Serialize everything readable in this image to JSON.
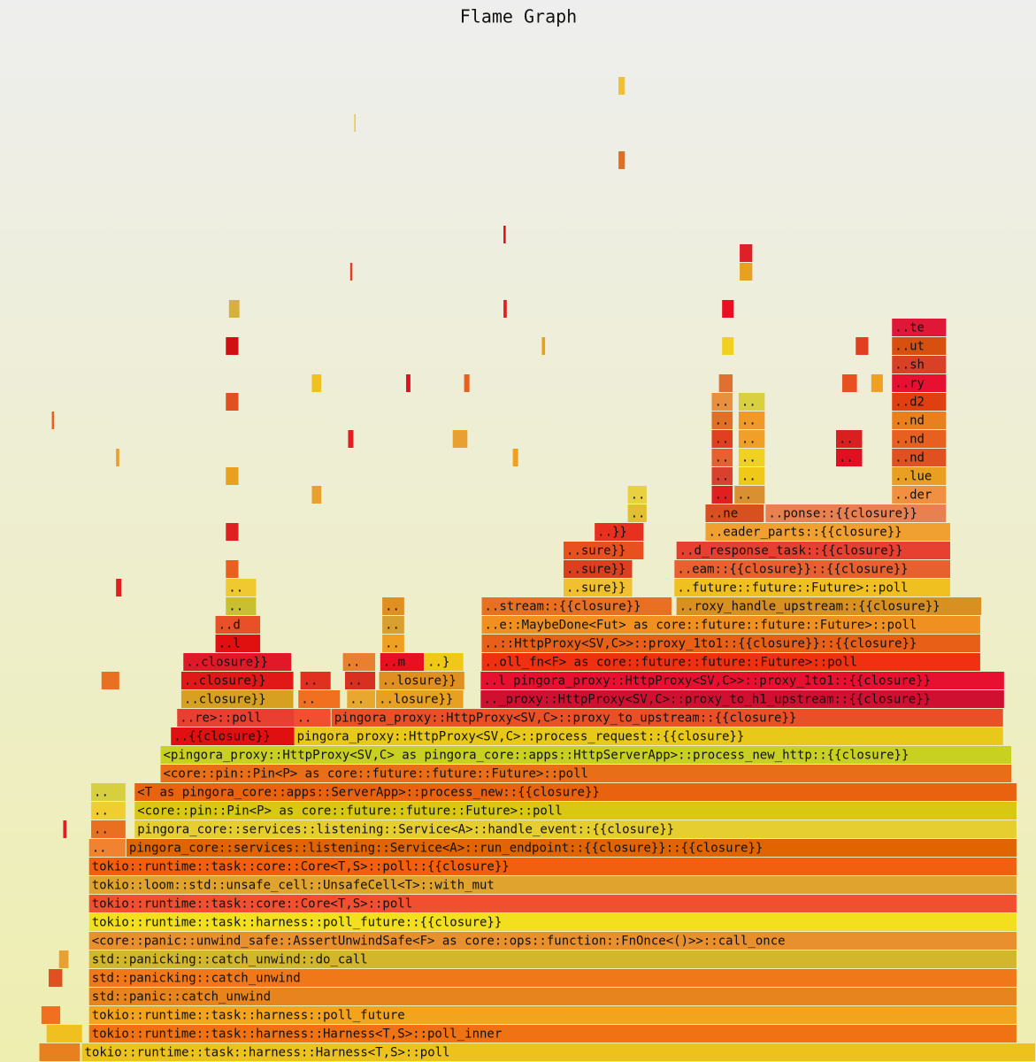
{
  "chart_data": {
    "type": "flame",
    "title": "Flame Graph",
    "frames": [
      {
        "name": "tokio::runtime::task::harness::Harness<T,S>::poll",
        "level": 0,
        "start": 7.9,
        "width": 92.1,
        "color": "#eec21c"
      },
      {
        "name": "tokio::runtime::task::harness::Harness<T,S>::poll_inner",
        "level": 1,
        "start": 8.6,
        "width": 89.6,
        "color": "#f07212"
      },
      {
        "name": "tokio::runtime::task::harness::poll_future",
        "level": 2,
        "start": 8.6,
        "width": 89.6,
        "color": "#f2a41e"
      },
      {
        "name": "std::panic::catch_unwind",
        "level": 3,
        "start": 8.6,
        "width": 89.6,
        "color": "#e8841e"
      },
      {
        "name": "std::panicking::catch_unwind",
        "level": 4,
        "start": 8.6,
        "width": 89.6,
        "color": "#f07818"
      },
      {
        "name": "std::panicking::catch_unwind::do_call",
        "level": 5,
        "start": 8.6,
        "width": 89.6,
        "color": "#d4b62c"
      },
      {
        "name": "<core::panic::unwind_safe::AssertUnwindSafe<F> as core::ops::function::FnOnce<()>>::call_once",
        "level": 6,
        "start": 8.6,
        "width": 89.6,
        "color": "#e8902e"
      },
      {
        "name": "tokio::runtime::task::harness::poll_future::{{closure}}",
        "level": 7,
        "start": 8.6,
        "width": 89.6,
        "color": "#f2e01e"
      },
      {
        "name": "tokio::runtime::task::core::Core<T,S>::poll",
        "level": 8,
        "start": 8.6,
        "width": 89.6,
        "color": "#f24e30"
      },
      {
        "name": "tokio::loom::std::unsafe_cell::UnsafeCell<T>::with_mut",
        "level": 9,
        "start": 8.6,
        "width": 89.6,
        "color": "#e0a42e"
      },
      {
        "name": "tokio::runtime::task::core::Core<T,S>::poll::{{closure}}",
        "level": 10,
        "start": 8.6,
        "width": 89.6,
        "color": "#f0600e"
      },
      {
        "name": "..",
        "level": 11,
        "start": 8.6,
        "width": 3.6,
        "color": "#f08230"
      },
      {
        "name": "pingora_core::services::listening::Service<A>::run_endpoint::{{closure}}::{{closure}}",
        "level": 11,
        "start": 12.2,
        "width": 86.0,
        "color": "#e06400"
      },
      {
        "name": "..",
        "level": 12,
        "start": 8.8,
        "width": 3.4,
        "color": "#e87020"
      },
      {
        "name": "pingora_core::services::listening::Service<A>::handle_event::{{closure}}",
        "level": 12,
        "start": 13.0,
        "width": 85.2,
        "color": "#e6ce30"
      },
      {
        "name": "..",
        "level": 13,
        "start": 8.8,
        "width": 3.4,
        "color": "#f0ce30"
      },
      {
        "name": "<core::pin::Pin<P> as core::future::future::Future>::poll",
        "level": 13,
        "start": 13.0,
        "width": 85.2,
        "color": "#d8c812"
      },
      {
        "name": "..",
        "level": 14,
        "start": 8.8,
        "width": 3.4,
        "color": "#d6d040"
      },
      {
        "name": "<T as pingora_core::apps::ServerApp>::process_new::{{closure}}",
        "level": 14,
        "start": 13.0,
        "width": 85.2,
        "color": "#e86210"
      },
      {
        "name": "<core::pin::Pin<P> as core::future::future::Future>::poll",
        "level": 15,
        "start": 15.5,
        "width": 82.2,
        "color": "#e86e18"
      },
      {
        "name": "<pingora_proxy::HttpProxy<SV,C> as pingora_core::apps::HttpServerApp>::process_new_http::{{closure}}",
        "level": 16,
        "start": 15.5,
        "width": 82.2,
        "color": "#c8d020"
      },
      {
        "name": "..{{closure}}",
        "level": 17,
        "start": 16.5,
        "width": 12.0,
        "color": "#e01010"
      },
      {
        "name": "pingora_proxy::HttpProxy<SV,C>::process_request::{{closure}}",
        "level": 17,
        "start": 28.4,
        "width": 68.5,
        "color": "#e8c818"
      },
      {
        "name": "..re>::poll",
        "level": 18,
        "start": 17.1,
        "width": 11.4,
        "color": "#e84030"
      },
      {
        "name": "..",
        "level": 18,
        "start": 28.4,
        "width": 3.6,
        "color": "#f05030"
      },
      {
        "name": "pingora_proxy::HttpProxy<SV,C>::proxy_to_upstream::{{closure}}",
        "level": 18,
        "start": 32.0,
        "width": 64.9,
        "color": "#e85028"
      },
      {
        "name": "..closure}}",
        "level": 19,
        "start": 17.5,
        "width": 10.9,
        "color": "#d8a020"
      },
      {
        "name": "..",
        "level": 19,
        "start": 28.8,
        "width": 4.1,
        "color": "#f07020"
      },
      {
        "name": "..",
        "level": 19,
        "start": 33.5,
        "width": 2.8,
        "color": "#e8a830"
      },
      {
        "name": "..losure}}",
        "level": 19,
        "start": 36.3,
        "width": 8.5,
        "color": "#e8a020"
      },
      {
        "name": ".._proxy::HttpProxy<SV,C>::proxy_to_h1_upstream::{{closure}}",
        "level": 19,
        "start": 46.4,
        "width": 50.6,
        "color": "#d01030"
      },
      {
        "name": "..closure}}",
        "level": 20,
        "start": 17.5,
        "width": 10.9,
        "color": "#e01818"
      },
      {
        "name": "..",
        "level": 20,
        "start": 29.0,
        "width": 3.0,
        "color": "#e03020"
      },
      {
        "name": "..",
        "level": 20,
        "start": 33.3,
        "width": 3.0,
        "color": "#d83020"
      },
      {
        "name": "..losure}}",
        "level": 20,
        "start": 36.6,
        "width": 8.3,
        "color": "#e09020"
      },
      {
        "name": "..l pingora_proxy::HttpProxy<SV,C>>::proxy_1to1::{{closure}}",
        "level": 20,
        "start": 46.4,
        "width": 50.6,
        "color": "#e81030"
      },
      {
        "name": "..closure}}",
        "level": 21,
        "start": 17.7,
        "width": 10.5,
        "color": "#e01828"
      },
      {
        "name": "..",
        "level": 21,
        "start": 33.1,
        "width": 3.2,
        "color": "#e88030"
      },
      {
        "name": "..m",
        "level": 21,
        "start": 36.7,
        "width": 4.3,
        "color": "#e81020"
      },
      {
        "name": "..}",
        "level": 21,
        "start": 41.0,
        "width": 3.8,
        "color": "#f0c818"
      },
      {
        "name": "..oll_fn<F> as core::future::future::Future>::poll",
        "level": 21,
        "start": 46.5,
        "width": 48.2,
        "color": "#f03010"
      },
      {
        "name": "..l",
        "level": 22,
        "start": 20.8,
        "width": 4.4,
        "color": "#e01010"
      },
      {
        "name": "..",
        "level": 22,
        "start": 36.9,
        "width": 2.2,
        "color": "#f0a020"
      },
      {
        "name": "..::HttpProxy<SV,C>>::proxy_1to1::{{closure}}::{{closure}}",
        "level": 22,
        "start": 46.5,
        "width": 48.2,
        "color": "#e86018"
      },
      {
        "name": "..d",
        "level": 23,
        "start": 20.8,
        "width": 4.4,
        "color": "#e85028"
      },
      {
        "name": "..",
        "level": 23,
        "start": 36.9,
        "width": 2.2,
        "color": "#d8a030"
      },
      {
        "name": "..e::MaybeDone<Fut> as core::future::future::Future>::poll",
        "level": 23,
        "start": 46.5,
        "width": 48.2,
        "color": "#f09020"
      },
      {
        "name": "..",
        "level": 24,
        "start": 21.8,
        "width": 3.0,
        "color": "#c8c030"
      },
      {
        "name": "..",
        "level": 24,
        "start": 36.9,
        "width": 2.2,
        "color": "#e09020"
      },
      {
        "name": "..stream::{{closure}}",
        "level": 24,
        "start": 46.5,
        "width": 18.4,
        "color": "#e87020"
      },
      {
        "name": "..roxy_handle_upstream::{{closure}}",
        "level": 24,
        "start": 65.3,
        "width": 29.5,
        "color": "#d89020"
      },
      {
        "name": "..",
        "level": 25,
        "start": 21.8,
        "width": 3.0,
        "color": "#f0c830"
      },
      {
        "name": "..sure}}",
        "level": 25,
        "start": 54.4,
        "width": 6.7,
        "color": "#f0c030"
      },
      {
        "name": "..future::future::Future>::poll",
        "level": 25,
        "start": 65.1,
        "width": 26.7,
        "color": "#f0c020"
      },
      {
        "name": "..sure}}",
        "level": 26,
        "start": 54.4,
        "width": 6.7,
        "color": "#d84020"
      },
      {
        "name": "..eam::{{closure}}::{{closure}}",
        "level": 26,
        "start": 65.1,
        "width": 26.7,
        "color": "#e86030"
      },
      {
        "name": "..sure}}",
        "level": 27,
        "start": 54.4,
        "width": 7.8,
        "color": "#e85020"
      },
      {
        "name": "..d_response_task::{{closure}}",
        "level": 27,
        "start": 65.3,
        "width": 26.5,
        "color": "#e84030"
      },
      {
        "name": "..}}",
        "level": 28,
        "start": 57.4,
        "width": 4.8,
        "color": "#e83020"
      },
      {
        "name": "..eader_parts::{{closure}}",
        "level": 28,
        "start": 68.1,
        "width": 23.7,
        "color": "#f0a030"
      },
      {
        "name": "..",
        "level": 29,
        "start": 60.6,
        "width": 1.9,
        "color": "#e0c030"
      },
      {
        "name": "..ne",
        "level": 29,
        "start": 68.1,
        "width": 5.7,
        "color": "#d85020"
      },
      {
        "name": "..ponse::{{closure}}",
        "level": 29,
        "start": 73.9,
        "width": 17.5,
        "color": "#e88050"
      },
      {
        "name": "..",
        "level": 30,
        "start": 60.6,
        "width": 1.9,
        "color": "#e8d040"
      },
      {
        "name": "..",
        "level": 30,
        "start": 68.7,
        "width": 2.1,
        "color": "#e02020"
      },
      {
        "name": "..",
        "level": 30,
        "start": 70.9,
        "width": 3.0,
        "color": "#d89030"
      },
      {
        "name": "..der",
        "level": 30,
        "start": 86.1,
        "width": 5.3,
        "color": "#f09040"
      },
      {
        "name": "..",
        "level": 31,
        "start": 68.7,
        "width": 2.1,
        "color": "#d84030"
      },
      {
        "name": "..",
        "level": 31,
        "start": 71.3,
        "width": 2.6,
        "color": "#f0c818"
      },
      {
        "name": "..lue",
        "level": 31,
        "start": 86.1,
        "width": 5.3,
        "color": "#e8a020"
      },
      {
        "name": "..",
        "level": 32,
        "start": 68.7,
        "width": 2.1,
        "color": "#e86030"
      },
      {
        "name": "..",
        "level": 32,
        "start": 71.3,
        "width": 2.6,
        "color": "#f0d020"
      },
      {
        "name": "..",
        "level": 32,
        "start": 80.7,
        "width": 2.6,
        "color": "#e01020"
      },
      {
        "name": "..nd",
        "level": 32,
        "start": 86.1,
        "width": 5.3,
        "color": "#e05020"
      },
      {
        "name": "..",
        "level": 33,
        "start": 68.7,
        "width": 2.1,
        "color": "#e04020"
      },
      {
        "name": "..",
        "level": 33,
        "start": 71.3,
        "width": 2.6,
        "color": "#f0a028"
      },
      {
        "name": "..",
        "level": 33,
        "start": 80.7,
        "width": 2.6,
        "color": "#d82020"
      },
      {
        "name": "..nd",
        "level": 33,
        "start": 86.1,
        "width": 5.3,
        "color": "#e86020"
      },
      {
        "name": "..",
        "level": 34,
        "start": 68.7,
        "width": 2.1,
        "color": "#e07028"
      },
      {
        "name": "..",
        "level": 34,
        "start": 71.3,
        "width": 2.6,
        "color": "#f09828"
      },
      {
        "name": "..nd",
        "level": 34,
        "start": 86.1,
        "width": 5.3,
        "color": "#e88020"
      },
      {
        "name": "..",
        "level": 35,
        "start": 68.7,
        "width": 2.1,
        "color": "#e89040"
      },
      {
        "name": "..",
        "level": 35,
        "start": 71.3,
        "width": 2.6,
        "color": "#d8d040"
      },
      {
        "name": "..d2",
        "level": 35,
        "start": 86.1,
        "width": 5.3,
        "color": "#e04010"
      },
      {
        "name": "..ry",
        "level": 36,
        "start": 86.1,
        "width": 5.3,
        "color": "#e81030"
      },
      {
        "name": "..sh",
        "level": 37,
        "start": 86.1,
        "width": 5.3,
        "color": "#d84028"
      },
      {
        "name": "..ut",
        "level": 38,
        "start": 86.1,
        "width": 5.3,
        "color": "#d85010"
      },
      {
        "name": "..te",
        "level": 39,
        "start": 86.1,
        "width": 5.3,
        "color": "#e01838"
      },
      {
        "name": null,
        "level": 26,
        "start": 21.8,
        "width": 1.3,
        "color": "#e86020"
      },
      {
        "name": null,
        "level": 28,
        "start": 21.8,
        "width": 1.3,
        "color": "#e02020"
      },
      {
        "name": null,
        "level": 31,
        "start": 21.8,
        "width": 1.3,
        "color": "#e8a020"
      },
      {
        "name": null,
        "level": 35,
        "start": 21.8,
        "width": 1.3,
        "color": "#e05020"
      },
      {
        "name": null,
        "level": 38,
        "start": 21.8,
        "width": 1.3,
        "color": "#d01010"
      },
      {
        "name": null,
        "level": 40,
        "start": 22.1,
        "width": 1.1,
        "color": "#d8b040"
      },
      {
        "name": null,
        "level": 30,
        "start": 30.1,
        "width": 1.0,
        "color": "#e8a030"
      },
      {
        "name": null,
        "level": 36,
        "start": 30.1,
        "width": 1.0,
        "color": "#f0c020"
      },
      {
        "name": null,
        "level": 33,
        "start": 33.6,
        "width": 0.6,
        "color": "#e02020"
      },
      {
        "name": null,
        "level": 42,
        "start": 33.8,
        "width": 0.3,
        "color": "#e04020"
      },
      {
        "name": null,
        "level": 50,
        "start": 34.2,
        "width": 0.2,
        "color": "#f0c020"
      },
      {
        "name": null,
        "level": 36,
        "start": 39.2,
        "width": 0.5,
        "color": "#e01020"
      },
      {
        "name": null,
        "level": 33,
        "start": 43.7,
        "width": 1.5,
        "color": "#e8a030"
      },
      {
        "name": null,
        "level": 36,
        "start": 44.8,
        "width": 0.6,
        "color": "#e86020"
      },
      {
        "name": null,
        "level": 40,
        "start": 48.6,
        "width": 0.4,
        "color": "#e02020"
      },
      {
        "name": null,
        "level": 44,
        "start": 48.6,
        "width": 0.3,
        "color": "#d81010"
      },
      {
        "name": null,
        "level": 32,
        "start": 49.5,
        "width": 0.6,
        "color": "#f0a020"
      },
      {
        "name": null,
        "level": 38,
        "start": 52.3,
        "width": 0.4,
        "color": "#e8a020"
      },
      {
        "name": null,
        "level": 48,
        "start": 59.7,
        "width": 0.7,
        "color": "#e07020"
      },
      {
        "name": null,
        "level": 52,
        "start": 59.7,
        "width": 0.7,
        "color": "#f0c030"
      },
      {
        "name": null,
        "level": 36,
        "start": 69.4,
        "width": 1.4,
        "color": "#e07030"
      },
      {
        "name": null,
        "level": 38,
        "start": 69.7,
        "width": 1.2,
        "color": "#f0d020"
      },
      {
        "name": null,
        "level": 40,
        "start": 69.7,
        "width": 1.2,
        "color": "#e81020"
      },
      {
        "name": null,
        "level": 42,
        "start": 71.4,
        "width": 1.3,
        "color": "#e8a020"
      },
      {
        "name": null,
        "level": 43,
        "start": 71.4,
        "width": 1.3,
        "color": "#e02028"
      },
      {
        "name": null,
        "level": 36,
        "start": 81.3,
        "width": 1.5,
        "color": "#e85020"
      },
      {
        "name": null,
        "level": 38,
        "start": 82.6,
        "width": 1.3,
        "color": "#e04020"
      },
      {
        "name": null,
        "level": 36,
        "start": 84.1,
        "width": 1.2,
        "color": "#f0a020"
      },
      {
        "name": null,
        "level": 34,
        "start": 5.0,
        "width": 0.3,
        "color": "#e86020"
      },
      {
        "name": null,
        "level": 12,
        "start": 6.1,
        "width": 0.4,
        "color": "#e02020"
      },
      {
        "name": null,
        "level": 5,
        "start": 5.7,
        "width": 1.0,
        "color": "#e8a030"
      },
      {
        "name": null,
        "level": 2,
        "start": 4.0,
        "width": 1.9,
        "color": "#f07020"
      },
      {
        "name": null,
        "level": 4,
        "start": 4.7,
        "width": 1.4,
        "color": "#e05020"
      },
      {
        "name": null,
        "level": 0,
        "start": 3.8,
        "width": 4.0,
        "color": "#e88020"
      },
      {
        "name": null,
        "level": 1,
        "start": 4.5,
        "width": 3.5,
        "color": "#f0c020"
      },
      {
        "name": null,
        "level": 20,
        "start": 9.8,
        "width": 1.8,
        "color": "#e87020"
      },
      {
        "name": null,
        "level": 25,
        "start": 11.2,
        "width": 0.6,
        "color": "#e02020"
      },
      {
        "name": null,
        "level": 32,
        "start": 11.2,
        "width": 0.4,
        "color": "#e8a030"
      }
    ]
  }
}
